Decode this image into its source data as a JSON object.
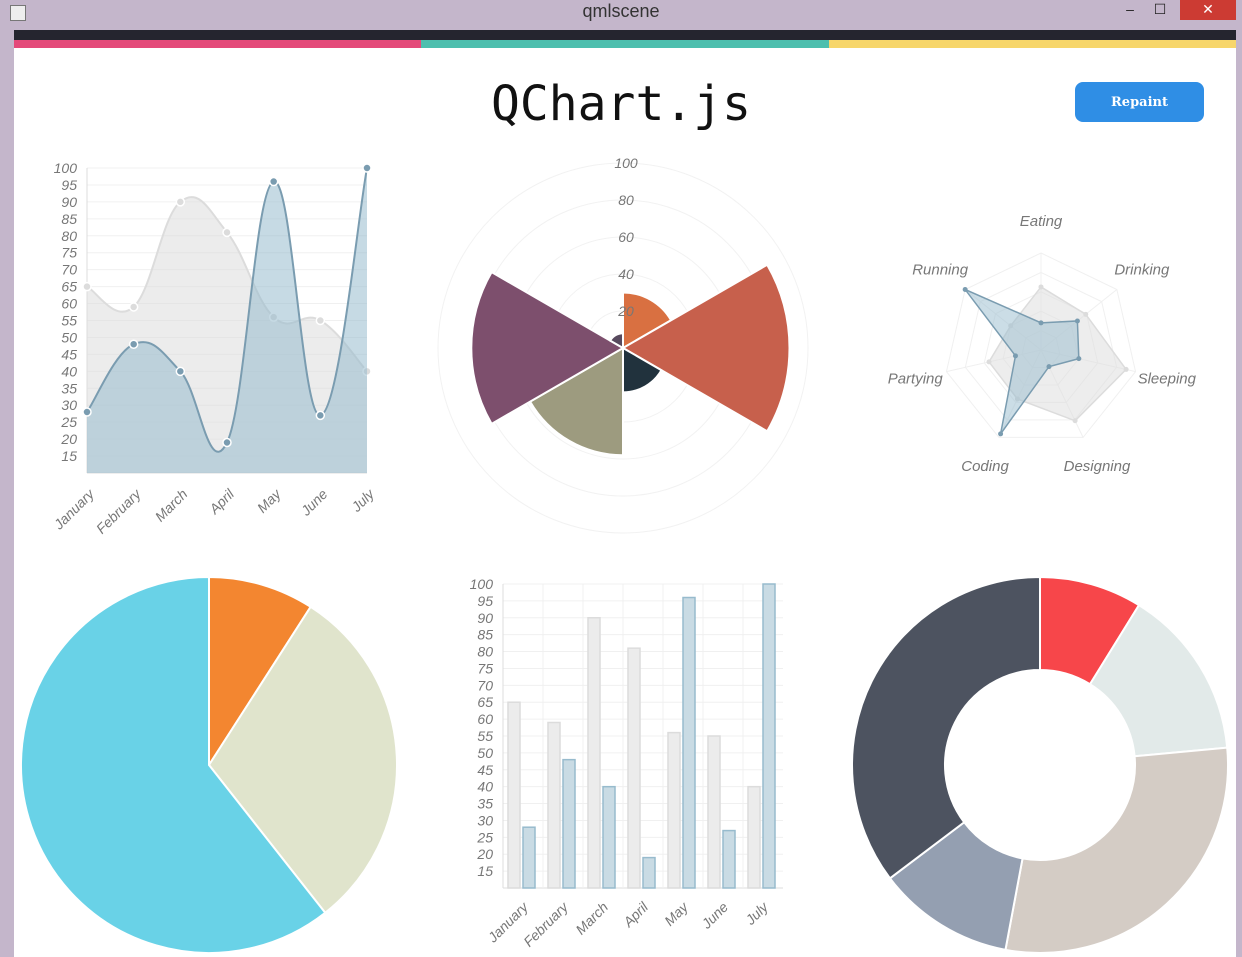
{
  "window": {
    "title": "qmlscene",
    "minimize": "‒",
    "maximize": "☐",
    "close": "✕"
  },
  "stripes": [
    "#e44a7a",
    "#4dbfae",
    "#f7d66b"
  ],
  "header": {
    "title": "QChart.js",
    "repaint_label": "Repaint"
  },
  "chart_data": [
    {
      "type": "line",
      "smooth": true,
      "filled": true,
      "categories": [
        "January",
        "February",
        "March",
        "April",
        "May",
        "June",
        "July"
      ],
      "ylim": [
        10,
        100
      ],
      "yticks": [
        "100",
        "95",
        "90",
        "85",
        "80",
        "75",
        "70",
        "65",
        "60",
        "55",
        "50",
        "45",
        "40",
        "35",
        "30",
        "25",
        "20",
        "15"
      ],
      "series": [
        {
          "values": [
            65,
            59,
            90,
            81,
            56,
            55,
            40
          ],
          "fill": "#dcdcdc",
          "stroke": "#dcdcdc"
        },
        {
          "values": [
            28,
            48,
            40,
            19,
            96,
            27,
            100
          ],
          "fill": "#97bbcd",
          "stroke": "#7a9cb0"
        }
      ]
    },
    {
      "type": "polar",
      "rlim": [
        0,
        100
      ],
      "rticks": [
        "20",
        "40",
        "60",
        "80",
        "100"
      ],
      "values": [
        30,
        90,
        24,
        58,
        82,
        8
      ],
      "colors": [
        "#D97041",
        "#C7604C",
        "#21323D",
        "#9D9B7F",
        "#7D4F6D",
        "#584A5E"
      ]
    },
    {
      "type": "radar",
      "categories": [
        "Eating",
        "Drinking",
        "Sleeping",
        "Designing",
        "Coding",
        "Partying",
        "Running"
      ],
      "rlim": [
        0,
        100
      ],
      "series": [
        {
          "values": [
            65,
            59,
            90,
            81,
            56,
            55,
            40
          ],
          "fill": "#dcdcdc",
          "stroke": "#dcdcdc"
        },
        {
          "values": [
            28,
            48,
            40,
            19,
            96,
            27,
            100
          ],
          "fill": "#97bbcd",
          "stroke": "#7a9cb0"
        }
      ]
    },
    {
      "type": "pie",
      "values": [
        30,
        100,
        200
      ],
      "colors": [
        "#F38630",
        "#E0E4CC",
        "#69D2E7"
      ]
    },
    {
      "type": "bar",
      "categories": [
        "January",
        "February",
        "March",
        "April",
        "May",
        "June",
        "July"
      ],
      "ylim": [
        10,
        100
      ],
      "yticks": [
        "100",
        "95",
        "90",
        "85",
        "80",
        "75",
        "70",
        "65",
        "60",
        "55",
        "50",
        "45",
        "40",
        "35",
        "30",
        "25",
        "20",
        "15"
      ],
      "series": [
        {
          "values": [
            65,
            59,
            90,
            81,
            56,
            55,
            40
          ],
          "fill": "#ececec",
          "stroke": "#dcdcdc"
        },
        {
          "values": [
            28,
            48,
            40,
            19,
            96,
            27,
            100
          ],
          "fill": "#c9dbe4",
          "stroke": "#97bbcd"
        }
      ]
    },
    {
      "type": "doughnut",
      "values": [
        30,
        50,
        100,
        40,
        120
      ],
      "colors": [
        "#F7464A",
        "#E2EAE9",
        "#D4CCC5",
        "#949FB1",
        "#4D5360"
      ]
    }
  ]
}
